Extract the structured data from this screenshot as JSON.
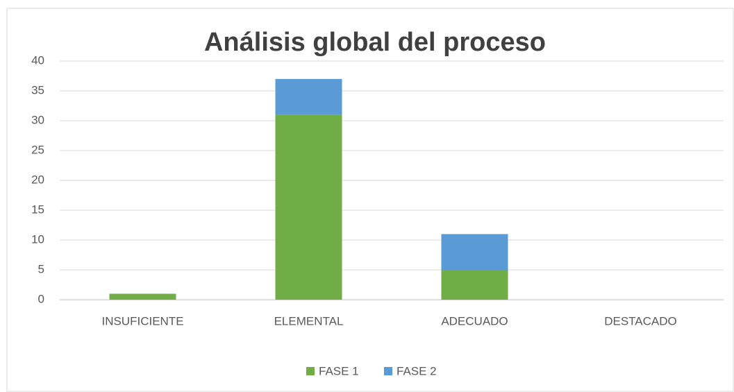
{
  "chart_data": {
    "type": "bar",
    "stacked": true,
    "title": "Análisis global del proceso",
    "categories": [
      "INSUFICIENTE",
      "ELEMENTAL",
      "ADECUADO",
      "DESTACADO"
    ],
    "series": [
      {
        "name": "FASE 1",
        "color": "#70ad47",
        "values": [
          1,
          31,
          5,
          0
        ]
      },
      {
        "name": "FASE 2",
        "color": "#5b9bd5",
        "values": [
          0,
          6,
          6,
          0
        ]
      }
    ],
    "ylim": [
      0,
      40
    ],
    "yticks": [
      0,
      5,
      10,
      15,
      20,
      25,
      30,
      35,
      40
    ],
    "grid": true,
    "legend": "bottom"
  }
}
